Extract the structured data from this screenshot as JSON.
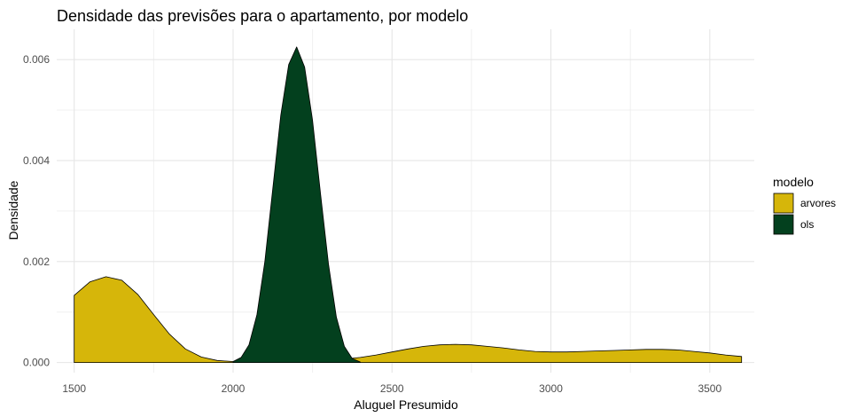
{
  "chart_data": {
    "type": "area",
    "title": "Densidade das previsões para o apartamento, por modelo",
    "xlabel": "Aluguel Presumido",
    "ylabel": "Densidade",
    "xlim": [
      1445,
      3640
    ],
    "ylim": [
      -0.0002,
      0.0066
    ],
    "x_ticks": [
      1500,
      2000,
      2500,
      3000,
      3500
    ],
    "x_tick_labels": [
      "1500",
      "2000",
      "2500",
      "3000",
      "3500"
    ],
    "y_ticks": [
      0.0,
      0.002,
      0.004,
      0.006
    ],
    "y_tick_labels": [
      "0.000",
      "0.002",
      "0.004",
      "0.006"
    ],
    "grid": true,
    "legend": {
      "title": "modelo",
      "placement": "right"
    },
    "series": [
      {
        "name": "arvores",
        "color": "#D6B60A",
        "x": [
          1500,
          1550,
          1600,
          1650,
          1700,
          1750,
          1800,
          1850,
          1900,
          1950,
          2000,
          2050,
          2100,
          2150,
          2200,
          2250,
          2300,
          2350,
          2400,
          2450,
          2500,
          2550,
          2600,
          2650,
          2700,
          2750,
          2800,
          2850,
          2900,
          2950,
          3000,
          3050,
          3100,
          3150,
          3200,
          3250,
          3300,
          3350,
          3400,
          3450,
          3500,
          3550,
          3600
        ],
        "y": [
          0.00133,
          0.0016,
          0.0017,
          0.00163,
          0.00135,
          0.00095,
          0.00056,
          0.00027,
          0.00011,
          4e-05,
          2e-05,
          1e-05,
          1e-05,
          1e-05,
          1e-05,
          2e-05,
          4e-05,
          7e-05,
          0.0001,
          0.00015,
          0.00021,
          0.00027,
          0.00032,
          0.00035,
          0.00036,
          0.00035,
          0.00032,
          0.00029,
          0.00025,
          0.00022,
          0.00021,
          0.00021,
          0.00022,
          0.00023,
          0.00024,
          0.00025,
          0.00026,
          0.00026,
          0.00025,
          0.00022,
          0.00019,
          0.00015,
          0.00012
        ]
      },
      {
        "name": "ols",
        "color": "#03401E",
        "x": [
          2000,
          2025,
          2050,
          2075,
          2100,
          2125,
          2150,
          2175,
          2200,
          2225,
          2250,
          2275,
          2300,
          2325,
          2350,
          2375,
          2400
        ],
        "y": [
          2e-05,
          0.0001,
          0.00035,
          0.00095,
          0.002,
          0.00345,
          0.0049,
          0.0059,
          0.00625,
          0.00585,
          0.0048,
          0.00335,
          0.00195,
          0.0009,
          0.00032,
          8e-05,
          1e-05
        ]
      }
    ]
  }
}
